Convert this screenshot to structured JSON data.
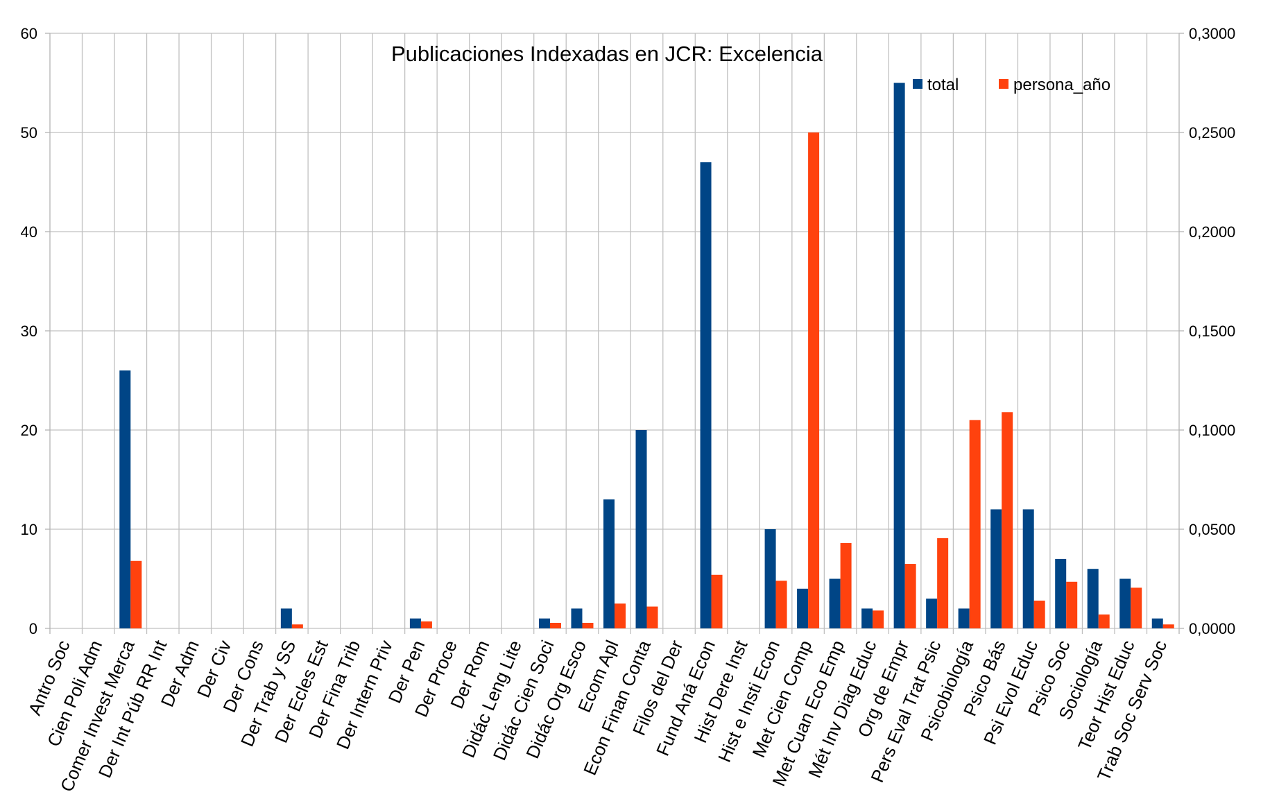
{
  "chart_data": {
    "type": "bar",
    "title": "Publicaciones Indexadas en JCR: Excelencia",
    "xlabel": "",
    "ylabel": "",
    "categories": [
      "Antro Soc",
      "Cien Poli Adm",
      "Comer Invest Merca",
      "Der Int Púb RR Int",
      "Der Adm",
      "Der Civ",
      "Der Cons",
      "Der Trab y SS",
      "Der Ecles Est",
      "Der Fina Trib",
      "Der Intern Priv",
      "Der Pen",
      "Der Proce",
      "Der Rom",
      "Didác Leng Lite",
      "Didác Cien Soci",
      "Didác Org Esco",
      "Ecom Apl",
      "Econ Finan Conta",
      "Filos del Der",
      "Fund Aná Econ",
      "Hist Dere Inst",
      "Hist e Insti Econ",
      "Met Cien Comp",
      "Met Cuan Eco Emp",
      "Mét Inv Diag Educ",
      "Org de Empr",
      "Pers Eval Trat Psic",
      "Psicobiología",
      "Psico Bás",
      "Psi Evol Educ",
      "Psico Soc",
      "Sociología",
      "Teor Hist Educ",
      "Trab Soc Serv Soc"
    ],
    "series": [
      {
        "name": "total",
        "axis": "left",
        "color": "#004586",
        "values": [
          0,
          0,
          26,
          0,
          0,
          0,
          0,
          2,
          0,
          0,
          0,
          1,
          0,
          0,
          0,
          1,
          2,
          13,
          20,
          0,
          47,
          0,
          10,
          4,
          5,
          2,
          55,
          3,
          2,
          12,
          12,
          7,
          6,
          5,
          1
        ]
      },
      {
        "name": "persona_año",
        "axis": "right",
        "color": "#ff420e",
        "values": [
          0,
          0,
          0.034,
          0,
          0,
          0,
          0,
          0.002,
          0,
          0,
          0,
          0.0035,
          0,
          0,
          0,
          0.0028,
          0.0028,
          0.0125,
          0.011,
          0,
          0.027,
          0,
          0.024,
          0.25,
          0.043,
          0.009,
          0.0325,
          0.0455,
          0.105,
          0.109,
          0.014,
          0.0235,
          0.007,
          0.0205,
          0.002
        ]
      }
    ],
    "y_left": {
      "min": 0,
      "max": 60,
      "step": 10,
      "ticks": [
        "0",
        "10",
        "20",
        "30",
        "40",
        "50",
        "60"
      ]
    },
    "y_right": {
      "min": 0,
      "max": 0.3,
      "step": 0.05,
      "ticks": [
        "0,0000",
        "0,0500",
        "0,1000",
        "0,1500",
        "0,2000",
        "0,2500",
        "0,3000"
      ]
    },
    "grid": true,
    "legend": {
      "position": "top-right",
      "items": [
        {
          "label": "total",
          "color": "#004586"
        },
        {
          "label": "persona_año",
          "color": "#ff420e"
        }
      ]
    }
  }
}
